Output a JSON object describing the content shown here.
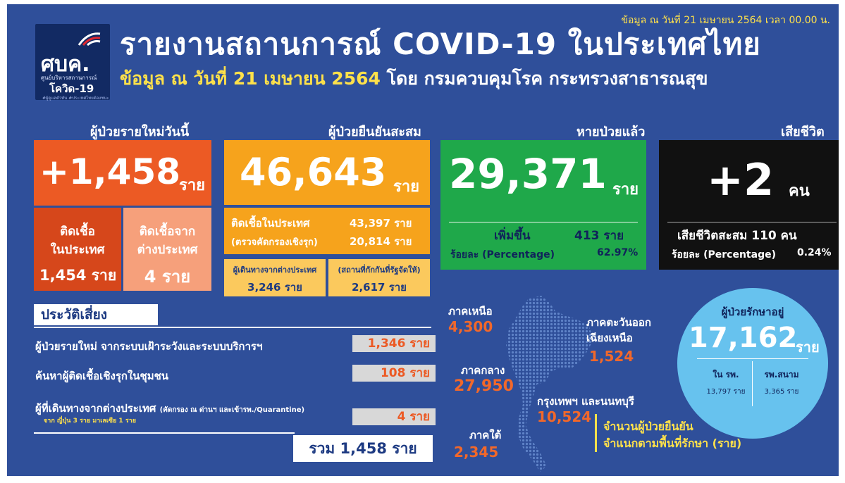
{
  "date_line": "ข้อมูล ณ วันที่ 21 เมษายน 2564 เวลา 00.00 น.",
  "logo": {
    "abbr": "ศบค.",
    "center_name": "ศูนย์บริหารสถานการณ์",
    "name": "โควิด-19",
    "tagline": "#ผู้ดูแลตัวทัน #ประเทศไทยต้องชนะ"
  },
  "title": "รายงานสถานการณ์ COVID-19 ในประเทศไทย",
  "subtitle": {
    "date": "ข้อมูล ณ วันที่ 21 เมษายน 2564",
    "by": "โดย กรมควบคุมโรค กระทรวงสาธารณสุข"
  },
  "new_cases": {
    "header": "ผู้ป่วยรายใหม่วันนี้",
    "value": "+1,458",
    "unit": "ราย",
    "local_label": "ติดเชื้อ ในประเทศ",
    "local_label_1": "ติดเชื้อ",
    "local_label_2": "ในประเทศ",
    "local_value": "1,454",
    "local_unit": "ราย",
    "imported_label_1": "ติดเชื้อจาก",
    "imported_label_2": "ต่างประเทศ",
    "imported_value": "4",
    "imported_unit": "ราย"
  },
  "cumulative": {
    "header": "ผู้ป่วยยืนยันสะสม",
    "value": "46,643",
    "unit": "ราย",
    "local_label": "ติดเชื้อในประเทศ",
    "local_value": "43,397 ราย",
    "active_label": "(ตรวจคัดกรองเชิงรุก)",
    "active_value": "20,814 ราย",
    "travel_label": "ผู้เดินทางจากต่างประเทศ",
    "travel_value": "3,246 ราย",
    "quarantine_label": "(สถานที่กักกันที่รัฐจัดให้)",
    "quarantine_value": "2,617 ราย"
  },
  "recovered": {
    "header": "หายป่วยแล้ว",
    "value": "29,371",
    "unit": "ราย",
    "increase_label": "เพิ่มขึ้น",
    "increase_value": "413 ราย",
    "percent_label": "ร้อยละ (Percentage)",
    "percent_value": "62.97%"
  },
  "deaths": {
    "header": "เสียชีวิต",
    "value": "+2",
    "unit": "คน",
    "cum_label": "เสียชีวิตสะสม 110 คน",
    "percent_label": "ร้อยละ (Percentage)",
    "percent_value": "0.24%"
  },
  "risk": {
    "title": "ประวัติเสี่ยง",
    "items": [
      {
        "label": "ผู้ป่วยรายใหม่ จากระบบเฝ้าระวังและระบบบริการฯ",
        "value": "1,346 ราย",
        "note": ""
      },
      {
        "label": "ค้นหาผู้ติดเชื้อเชิงรุกในชุมชน",
        "value": "108 ราย",
        "note": ""
      },
      {
        "label": "ผู้ที่เดินทางจากต่างประเทศ",
        "label_extra": "(คัดกรอง ณ ด่านฯ และเข้ารพ./Quarantine)",
        "value": "4 ราย",
        "note": "จาก ญี่ปุ่น 3 ราย มาเลเซีย 1 ราย"
      }
    ],
    "total": "รวม 1,458 ราย"
  },
  "regions": {
    "north": {
      "name": "ภาคเหนือ",
      "value": "4,300"
    },
    "northeast": {
      "name_1": "ภาคตะวันออก",
      "name_2": "เฉียงเหนือ",
      "value": "1,524"
    },
    "central": {
      "name": "ภาคกลาง",
      "value": "27,950"
    },
    "bangkok": {
      "name": "กรุงเทพฯ และนนทบุรี",
      "value": "10,524"
    },
    "south": {
      "name": "ภาคใต้",
      "value": "2,345"
    },
    "caption_1": "จำนวนผู้ป่วยยืนยัน",
    "caption_2": "จำแนกตามพื้นที่รักษา (ราย)"
  },
  "treating": {
    "header": "ผู้ป่วยรักษาอยู่",
    "value": "17,162",
    "unit": "ราย",
    "hospital_label": "ใน รพ.",
    "hospital_value": "13,797 ราย",
    "field_label": "รพ.สนาม",
    "field_value": "3,365 ราย"
  },
  "colors": {
    "background": "#2f4f9a",
    "new_cases": "#ec5a24",
    "cumulative": "#f6a31c",
    "recovered": "#1fa84a",
    "deaths": "#111111",
    "treating": "#67c2ee",
    "highlight": "#ffe14a"
  }
}
